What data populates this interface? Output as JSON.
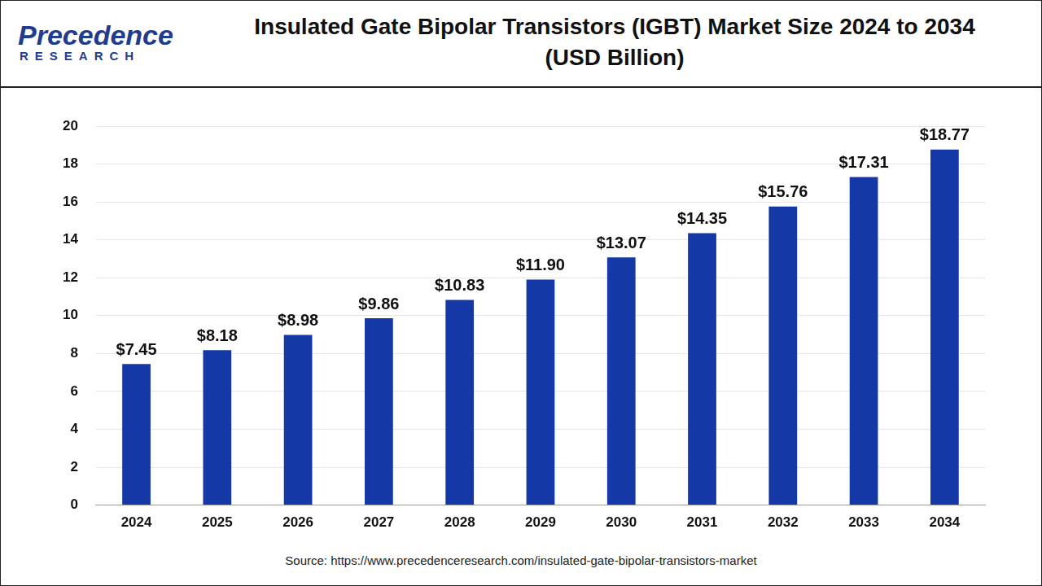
{
  "logo": {
    "name": "Precedence",
    "sub": "RESEARCH"
  },
  "chart_data": {
    "type": "bar",
    "title": [
      "Insulated Gate Bipolar Transistors (IGBT) Market Size 2024 to 2034",
      "(USD Billion)"
    ],
    "source": "Source: https://www.precedenceresearch.com/insulated-gate-bipolar-transistors-market",
    "categories": [
      "2024",
      "2025",
      "2026",
      "2027",
      "2028",
      "2029",
      "2030",
      "2031",
      "2032",
      "2033",
      "2034"
    ],
    "values": [
      7.45,
      8.18,
      8.98,
      9.86,
      10.83,
      11.9,
      13.07,
      14.35,
      15.76,
      17.31,
      18.77
    ],
    "value_labels": [
      "$7.45",
      "$8.18",
      "$8.98",
      "$9.86",
      "$10.83",
      "$11.90",
      "$13.07",
      "$14.35",
      "$15.76",
      "$17.31",
      "$18.77"
    ],
    "color": "#1438a6",
    "ylim": [
      0,
      20
    ],
    "yticks": [
      0,
      2,
      4,
      6,
      8,
      10,
      12,
      14,
      16,
      18,
      20
    ],
    "grid": true,
    "data_labels": true
  }
}
